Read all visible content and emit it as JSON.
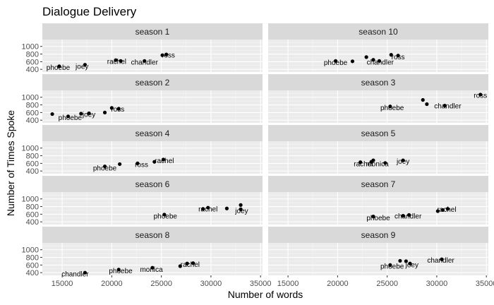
{
  "chart_data": {
    "type": "scatter",
    "title": "Dialogue Delivery",
    "xlabel": "Number of words",
    "ylabel": "Number of Times Spoke",
    "xlim": [
      13000,
      35200
    ],
    "ylim": [
      330,
      1180
    ],
    "xticks": [
      15000,
      20000,
      25000,
      30000,
      35000
    ],
    "yticks": [
      400,
      600,
      800,
      1000
    ],
    "grid": true,
    "facet_layout": "2 columns x 5 rows",
    "panels": [
      {
        "strip": "season 1",
        "points": [
          {
            "x": 14700,
            "y": 480,
            "label": ""
          },
          {
            "x": 17300,
            "y": 520,
            "label": ""
          },
          {
            "x": 20400,
            "y": 640,
            "label": ""
          },
          {
            "x": 20900,
            "y": 620,
            "label": ""
          },
          {
            "x": 23300,
            "y": 620,
            "label": ""
          },
          {
            "x": 25100,
            "y": 770,
            "label": ""
          },
          {
            "x": 25500,
            "y": 790,
            "label": ""
          }
        ],
        "labels": [
          {
            "text": "phoebe",
            "x": 14600,
            "y": 440
          },
          {
            "text": "joey",
            "x": 17000,
            "y": 470
          },
          {
            "text": "rachel",
            "x": 20500,
            "y": 600
          },
          {
            "text": "chandler",
            "x": 23300,
            "y": 580
          },
          {
            "text": "ross",
            "x": 25700,
            "y": 760
          }
        ]
      },
      {
        "strip": "season 10",
        "points": [
          {
            "x": 19800,
            "y": 620,
            "label": ""
          },
          {
            "x": 21500,
            "y": 610,
            "label": ""
          },
          {
            "x": 22900,
            "y": 720,
            "label": ""
          },
          {
            "x": 23600,
            "y": 650,
            "label": ""
          },
          {
            "x": 24200,
            "y": 620,
            "label": ""
          },
          {
            "x": 25400,
            "y": 780,
            "label": ""
          },
          {
            "x": 26100,
            "y": 760,
            "label": ""
          }
        ],
        "labels": [
          {
            "text": "phoebe",
            "x": 19800,
            "y": 570
          },
          {
            "text": "chandler",
            "x": 24300,
            "y": 580
          },
          {
            "text": "ross",
            "x": 26100,
            "y": 720
          }
        ]
      },
      {
        "strip": "season 2",
        "points": [
          {
            "x": 14000,
            "y": 560,
            "label": ""
          },
          {
            "x": 15600,
            "y": 500,
            "label": ""
          },
          {
            "x": 16900,
            "y": 570,
            "label": ""
          },
          {
            "x": 17700,
            "y": 580,
            "label": ""
          },
          {
            "x": 19300,
            "y": 600,
            "label": ""
          },
          {
            "x": 20000,
            "y": 720,
            "label": ""
          },
          {
            "x": 20700,
            "y": 700,
            "label": ""
          }
        ],
        "labels": [
          {
            "text": "phoebe",
            "x": 15800,
            "y": 460
          },
          {
            "text": "joey",
            "x": 17700,
            "y": 540
          },
          {
            "text": "ross",
            "x": 20600,
            "y": 680
          }
        ]
      },
      {
        "strip": "season 3",
        "points": [
          {
            "x": 25300,
            "y": 760,
            "label": ""
          },
          {
            "x": 28600,
            "y": 930,
            "label": ""
          },
          {
            "x": 29000,
            "y": 820,
            "label": ""
          },
          {
            "x": 30800,
            "y": 780,
            "label": ""
          },
          {
            "x": 34400,
            "y": 1070,
            "label": ""
          }
        ],
        "labels": [
          {
            "text": "phoebe",
            "x": 25500,
            "y": 720
          },
          {
            "text": "chandler",
            "x": 31100,
            "y": 760
          },
          {
            "text": "ross",
            "x": 34400,
            "y": 1040
          }
        ]
      },
      {
        "strip": "season 4",
        "points": [
          {
            "x": 19300,
            "y": 520,
            "label": ""
          },
          {
            "x": 20800,
            "y": 580,
            "label": ""
          },
          {
            "x": 22600,
            "y": 600,
            "label": ""
          },
          {
            "x": 24300,
            "y": 640,
            "label": ""
          },
          {
            "x": 25200,
            "y": 700,
            "label": ""
          }
        ],
        "labels": [
          {
            "text": "phoebe",
            "x": 19300,
            "y": 470
          },
          {
            "text": "ross",
            "x": 23000,
            "y": 560
          },
          {
            "text": "rachel",
            "x": 25300,
            "y": 660
          }
        ]
      },
      {
        "strip": "season 5",
        "points": [
          {
            "x": 22300,
            "y": 630,
            "label": ""
          },
          {
            "x": 23400,
            "y": 640,
            "label": ""
          },
          {
            "x": 23600,
            "y": 680,
            "label": ""
          },
          {
            "x": 24800,
            "y": 610,
            "label": ""
          },
          {
            "x": 26600,
            "y": 680,
            "label": ""
          }
        ],
        "labels": [
          {
            "text": "rachel",
            "x": 22600,
            "y": 580
          },
          {
            "text": "monica",
            "x": 24000,
            "y": 580
          },
          {
            "text": "joey",
            "x": 26600,
            "y": 640
          }
        ]
      },
      {
        "strip": "season 6",
        "points": [
          {
            "x": 25300,
            "y": 590,
            "label": ""
          },
          {
            "x": 29200,
            "y": 740,
            "label": ""
          },
          {
            "x": 29700,
            "y": 770,
            "label": ""
          },
          {
            "x": 31600,
            "y": 750,
            "label": ""
          },
          {
            "x": 33000,
            "y": 840,
            "label": ""
          },
          {
            "x": 33000,
            "y": 730,
            "label": ""
          }
        ],
        "labels": [
          {
            "text": "phoebe",
            "x": 25400,
            "y": 540
          },
          {
            "text": "rachel",
            "x": 29700,
            "y": 730
          },
          {
            "text": "joey",
            "x": 33100,
            "y": 680
          }
        ]
      },
      {
        "strip": "season 7",
        "points": [
          {
            "x": 23600,
            "y": 540,
            "label": ""
          },
          {
            "x": 26600,
            "y": 560,
            "label": ""
          },
          {
            "x": 27200,
            "y": 580,
            "label": ""
          },
          {
            "x": 30100,
            "y": 680,
            "label": ""
          },
          {
            "x": 30600,
            "y": 710,
            "label": ""
          },
          {
            "x": 31100,
            "y": 740,
            "label": ""
          }
        ],
        "labels": [
          {
            "text": "phoebe",
            "x": 24100,
            "y": 500
          },
          {
            "text": "chandler",
            "x": 27100,
            "y": 540
          },
          {
            "text": "rachel",
            "x": 31000,
            "y": 720
          }
        ]
      },
      {
        "strip": "season 8",
        "points": [
          {
            "x": 17300,
            "y": 400,
            "label": ""
          },
          {
            "x": 20700,
            "y": 480,
            "label": ""
          },
          {
            "x": 24100,
            "y": 530,
            "label": ""
          },
          {
            "x": 26900,
            "y": 570,
            "label": ""
          },
          {
            "x": 27600,
            "y": 640,
            "label": ""
          },
          {
            "x": 28200,
            "y": 650,
            "label": ""
          }
        ],
        "labels": [
          {
            "text": "chandler",
            "x": 16300,
            "y": 360
          },
          {
            "text": "phoebe",
            "x": 20900,
            "y": 440
          },
          {
            "text": "monica",
            "x": 24000,
            "y": 480
          },
          {
            "text": "rachel",
            "x": 27900,
            "y": 610
          }
        ]
      },
      {
        "strip": "season 9",
        "points": [
          {
            "x": 25300,
            "y": 600,
            "label": ""
          },
          {
            "x": 26300,
            "y": 710,
            "label": ""
          },
          {
            "x": 26900,
            "y": 700,
            "label": ""
          },
          {
            "x": 27300,
            "y": 640,
            "label": ""
          },
          {
            "x": 30500,
            "y": 750,
            "label": ""
          }
        ],
        "labels": [
          {
            "text": "phoebe",
            "x": 25500,
            "y": 560
          },
          {
            "text": "joey",
            "x": 27500,
            "y": 600
          },
          {
            "text": "chandler",
            "x": 30400,
            "y": 720
          }
        ]
      }
    ]
  }
}
